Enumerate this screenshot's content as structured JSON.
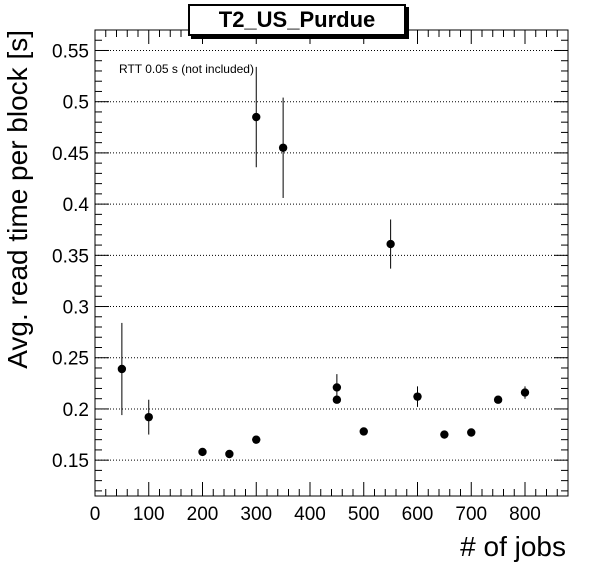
{
  "chart_data": {
    "type": "scatter",
    "title": "T2_US_Purdue",
    "xlabel": "# of jobs",
    "ylabel": "Avg. read time per block [s]",
    "annotation": "RTT 0.05 s (not included)",
    "xlim": [
      0,
      880
    ],
    "ylim": [
      0.115,
      0.57
    ],
    "xticks": [
      0,
      100,
      200,
      300,
      400,
      500,
      600,
      700,
      800
    ],
    "yticks": [
      0.15,
      0.2,
      0.25,
      0.3,
      0.35,
      0.4,
      0.45,
      0.5,
      0.55
    ],
    "ytick_labels": [
      "0.15",
      "0.2",
      "0.25",
      "0.3",
      "0.35",
      "0.4",
      "0.45",
      "0.5",
      "0.55"
    ],
    "grid": "horizontal dotted",
    "points": [
      {
        "x": 50,
        "y": 0.239,
        "err": 0.045
      },
      {
        "x": 100,
        "y": 0.192,
        "err": 0.017
      },
      {
        "x": 200,
        "y": 0.158,
        "err": 0.0
      },
      {
        "x": 250,
        "y": 0.156,
        "err": 0.0
      },
      {
        "x": 300,
        "y": 0.17,
        "err": 0.0
      },
      {
        "x": 300,
        "y": 0.485,
        "err": 0.049
      },
      {
        "x": 350,
        "y": 0.455,
        "err": 0.049
      },
      {
        "x": 450,
        "y": 0.221,
        "err": 0.013
      },
      {
        "x": 450,
        "y": 0.209,
        "err": 0.0
      },
      {
        "x": 500,
        "y": 0.178,
        "err": 0.0
      },
      {
        "x": 550,
        "y": 0.361,
        "err": 0.024
      },
      {
        "x": 600,
        "y": 0.212,
        "err": 0.01
      },
      {
        "x": 650,
        "y": 0.175,
        "err": 0.0
      },
      {
        "x": 700,
        "y": 0.177,
        "err": 0.0
      },
      {
        "x": 750,
        "y": 0.209,
        "err": 0.0
      },
      {
        "x": 800,
        "y": 0.216,
        "err": 0.006
      }
    ]
  }
}
